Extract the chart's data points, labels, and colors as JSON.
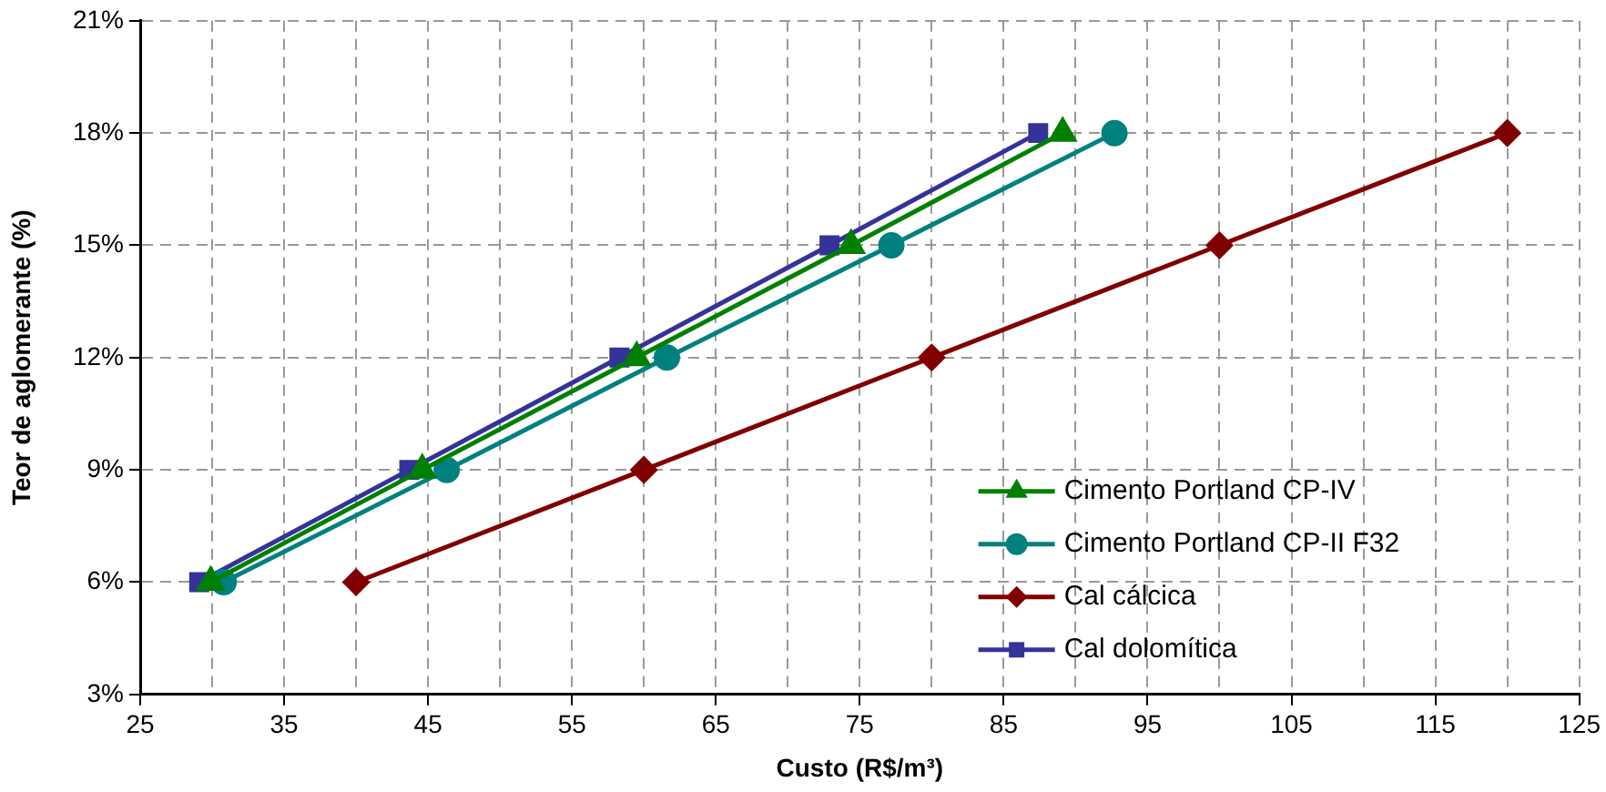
{
  "chart_data": {
    "type": "line",
    "xlabel": "Custo (R$/m³)",
    "ylabel": "Teor de aglomerante (%)",
    "xlim": [
      25,
      125
    ],
    "xticks": [
      25,
      {
        "value": 30,
        "label": null
      },
      35,
      {
        "value": 40,
        "label": null
      },
      45,
      {
        "value": 50,
        "label": null
      },
      55,
      {
        "value": 60,
        "label": null
      },
      65,
      {
        "value": 70,
        "label": null
      },
      75,
      {
        "value": 80,
        "label": null
      },
      85,
      {
        "value": 90,
        "label": null
      },
      95,
      {
        "value": 100,
        "label": null
      },
      105,
      {
        "value": 110,
        "label": null
      },
      115,
      {
        "value": 120,
        "label": null
      },
      125
    ],
    "ylim": [
      3,
      21
    ],
    "yticks": [
      {
        "value": 3,
        "label": "3%"
      },
      {
        "value": 6,
        "label": "6%"
      },
      {
        "value": 9,
        "label": "9%"
      },
      {
        "value": 12,
        "label": "12%"
      },
      {
        "value": 15,
        "label": "15%"
      },
      {
        "value": 18,
        "label": "18%"
      },
      {
        "value": 21,
        "label": "21%"
      }
    ],
    "grid": true,
    "legend": "bottom right",
    "line_style": "solid",
    "series": [
      {
        "name": "Cimento Portland CP-IV",
        "color": "#008000",
        "marker": "triangle",
        "x": [
          29.9,
          44.6,
          59.5,
          74.4,
          89.1
        ],
        "values": [
          6,
          9,
          12,
          15,
          18
        ]
      },
      {
        "name": "Cimento Portland CP-II F32",
        "color": "#008080",
        "marker": "circle",
        "x": [
          30.8,
          46.3,
          61.6,
          77.2,
          92.7
        ],
        "values": [
          6,
          9,
          12,
          15,
          18
        ]
      },
      {
        "name": "Cal cálcica",
        "color": "#800000",
        "marker": "diamond",
        "x": [
          40,
          60,
          80,
          100,
          120
        ],
        "values": [
          6,
          9,
          12,
          15,
          18
        ]
      },
      {
        "name": "Cal dolomítica",
        "color": "#333399",
        "marker": "square",
        "x": [
          29.1,
          43.7,
          58.3,
          72.9,
          87.4
        ],
        "values": [
          6,
          9,
          12,
          15,
          18
        ]
      }
    ]
  }
}
